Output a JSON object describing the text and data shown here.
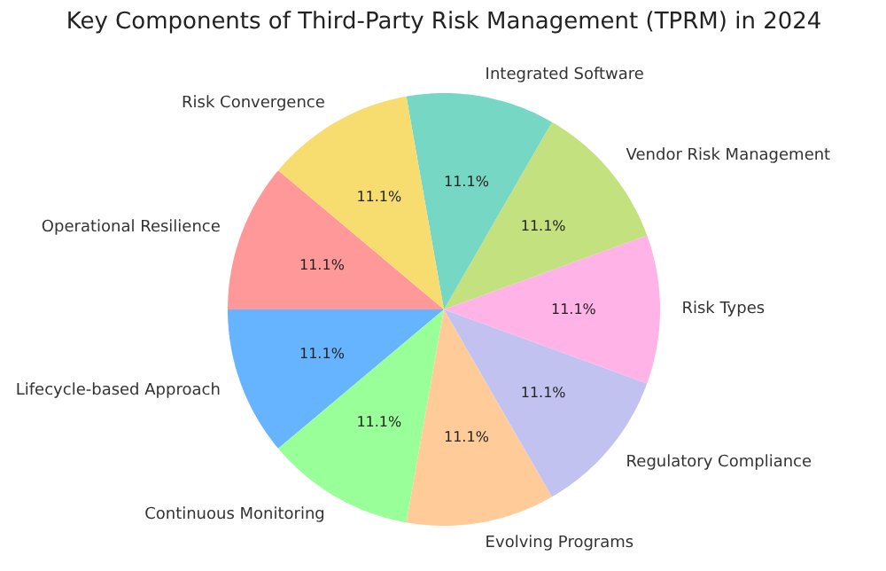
{
  "chart_data": {
    "type": "pie",
    "title": "Key Components of Third-Party Risk Management (TPRM) in 2024",
    "categories": [
      "Operational Resilience",
      "Lifecycle-based Approach",
      "Continuous Monitoring",
      "Evolving Programs",
      "Regulatory Compliance",
      "Risk Types",
      "Vendor Risk Management",
      "Integrated Software",
      "Risk Convergence"
    ],
    "values": [
      11.1,
      11.1,
      11.1,
      11.1,
      11.1,
      11.1,
      11.1,
      11.1,
      11.1
    ],
    "colors": [
      "#ff9999",
      "#66b3ff",
      "#99ff99",
      "#ffcc99",
      "#c2c2f0",
      "#ffb3e6",
      "#c4e17f",
      "#76d7c4",
      "#f7dc6f"
    ],
    "value_labels": [
      "11.1%",
      "11.1%",
      "11.1%",
      "11.1%",
      "11.1%",
      "11.1%",
      "11.1%",
      "11.1%",
      "11.1%"
    ]
  }
}
